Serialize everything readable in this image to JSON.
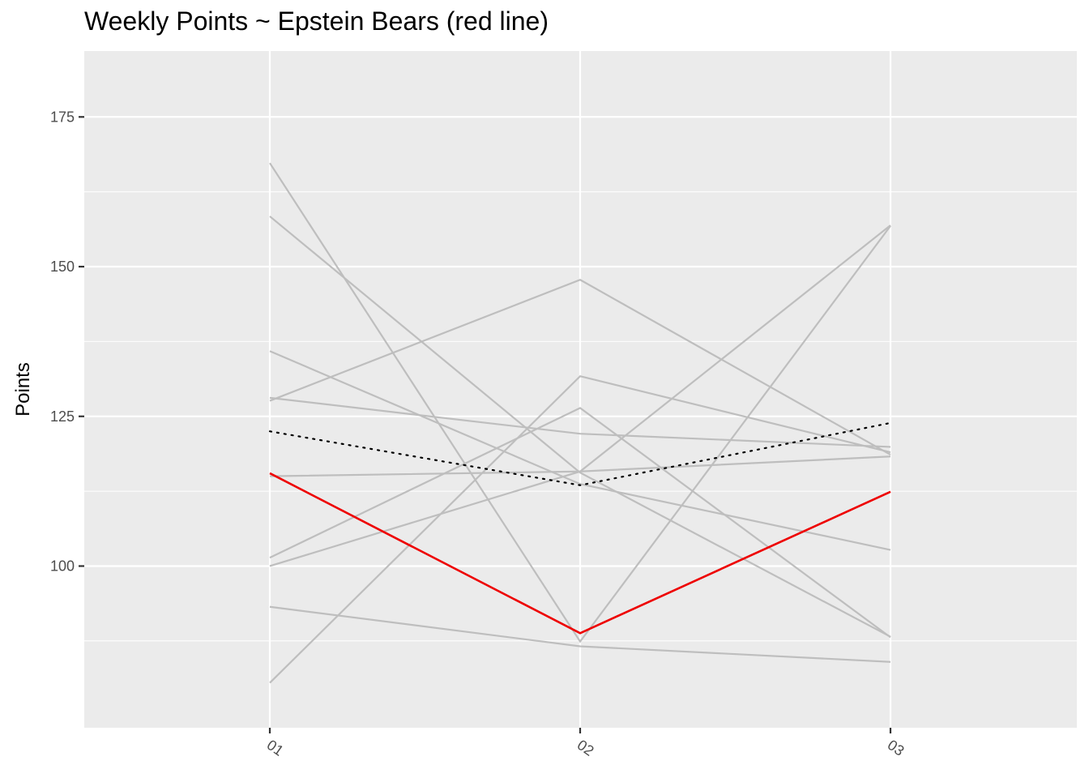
{
  "chart_data": {
    "type": "line",
    "title": "Weekly Points ~ Epstein Bears (red line)",
    "xlabel": "",
    "ylabel": "Points",
    "categories": [
      "01",
      "02",
      "03"
    ],
    "ylim": [
      73,
      186
    ],
    "y_ticks": [
      100,
      125,
      150,
      175
    ],
    "grid": true,
    "legend": "none",
    "colors": {
      "panel_background": "#ebebeb",
      "grid": "#ffffff",
      "other_teams": "#bebebe",
      "highlight": "#ee0000",
      "average": "#000000"
    },
    "series": [
      {
        "values": [
          167.3,
          87.4,
          156.8
        ],
        "role": "other"
      },
      {
        "values": [
          158.4,
          115.6,
          88.2
        ],
        "role": "other"
      },
      {
        "values": [
          127.6,
          147.8,
          118.6
        ],
        "role": "other"
      },
      {
        "values": [
          135.9,
          113.7,
          102.7
        ],
        "role": "other"
      },
      {
        "values": [
          128.1,
          122.1,
          119.9
        ],
        "role": "other"
      },
      {
        "values": [
          115.0,
          115.8,
          118.3
        ],
        "role": "other"
      },
      {
        "values": [
          101.4,
          126.4,
          88.1
        ],
        "role": "other"
      },
      {
        "values": [
          93.2,
          86.6,
          84.0
        ],
        "role": "other"
      },
      {
        "values": [
          80.5,
          131.7,
          119.0
        ],
        "role": "other"
      },
      {
        "values": [
          100.0,
          115.8,
          156.9
        ],
        "role": "other"
      },
      {
        "values": [
          122.5,
          113.5,
          123.9
        ],
        "role": "average"
      },
      {
        "values": [
          115.5,
          88.8,
          112.4
        ],
        "role": "highlight"
      }
    ]
  }
}
